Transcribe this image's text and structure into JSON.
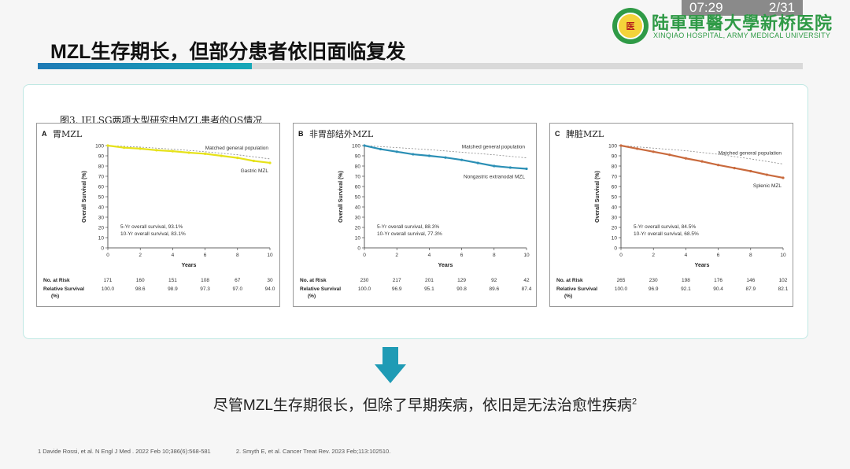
{
  "status": {
    "time": "07:29",
    "page": "2/31"
  },
  "logo": {
    "text": "医"
  },
  "hospital": {
    "cn": "陆軍軍醫大學新桥医院",
    "en": "XINQIAO HOSPITAL, ARMY MEDICAL UNIVERSITY"
  },
  "title": "MZL生存期长，但部分患者依旧面临复发",
  "figure_caption": "图3. IELSG两项大型研究中MZL患者的OS情况",
  "conclusion": {
    "text": "尽管MZL生存期很长，但除了早期疾病，依旧是无法治愈性疾病",
    "sup": "2"
  },
  "references": [
    "1 Davide Rossi, et al. N Engl J Med . 2022 Feb 10;386(6):568-581",
    "2. Smyth E, et al. Cancer Treat Rev. 2023 Feb;113:102510."
  ],
  "colors": {
    "accent": "#1e7ab5",
    "gastric": "#e6e21a",
    "nongastric": "#2a8fb5",
    "splenic": "#c96a3d",
    "arrow": "#1f9bb5"
  },
  "chart_data": [
    {
      "type": "line",
      "panel": "A",
      "title": "胃MZL",
      "xlabel": "Years",
      "ylabel": "Overall Survival (%)",
      "xlim": [
        0,
        10
      ],
      "ylim": [
        0,
        100
      ],
      "xticks": [
        0,
        2,
        4,
        6,
        8,
        10
      ],
      "yticks": [
        0,
        10,
        20,
        30,
        40,
        50,
        60,
        70,
        80,
        90,
        100
      ],
      "series": [
        {
          "name": "Matched general population",
          "x": [
            0,
            2,
            4,
            6,
            8,
            10
          ],
          "y": [
            100,
            98.5,
            96.5,
            94,
            91,
            87
          ]
        },
        {
          "name": "Gastric MZL",
          "x": [
            0,
            1,
            2,
            3,
            4,
            5,
            6,
            7,
            8,
            9,
            10
          ],
          "y": [
            100,
            98,
            97,
            95.5,
            94.5,
            93.1,
            92,
            90,
            88,
            85,
            83.1
          ]
        }
      ],
      "annotations": [
        "5-Yr overall survival, 93.1%",
        "10-Yr overall survival, 83.1%"
      ],
      "risk_table": {
        "row_labels": [
          "No. at Risk",
          "Relative Survival",
          "(%)"
        ],
        "no_at_risk": [
          "171",
          "160",
          "151",
          "108",
          "67",
          "30"
        ],
        "relative_survival": [
          "100.0",
          "98.6",
          "98.9",
          "97.3",
          "97.0",
          "94.0"
        ]
      }
    },
    {
      "type": "line",
      "panel": "B",
      "title": "非胃部结外MZL",
      "xlabel": "Years",
      "ylabel": "Overall Survival (%)",
      "xlim": [
        0,
        10
      ],
      "ylim": [
        0,
        100
      ],
      "xticks": [
        0,
        2,
        4,
        6,
        8,
        10
      ],
      "yticks": [
        0,
        10,
        20,
        30,
        40,
        50,
        60,
        70,
        80,
        90,
        100
      ],
      "series": [
        {
          "name": "Matched general population",
          "x": [
            0,
            2,
            4,
            6,
            8,
            10
          ],
          "y": [
            100,
            98,
            96,
            93.5,
            91,
            88
          ]
        },
        {
          "name": "Nongastric extranodal MZL",
          "x": [
            0,
            1,
            2,
            3,
            4,
            5,
            6,
            7,
            8,
            9,
            10
          ],
          "y": [
            100,
            96.5,
            94,
            91.5,
            90,
            88.3,
            86,
            83,
            80,
            78.5,
            77.3
          ]
        }
      ],
      "annotations": [
        "5-Yr overall survival, 88.3%",
        "10-Yr overall survival, 77.3%"
      ],
      "risk_table": {
        "row_labels": [
          "No. at Risk",
          "Relative Survival",
          "(%)"
        ],
        "no_at_risk": [
          "230",
          "217",
          "201",
          "129",
          "92",
          "42"
        ],
        "relative_survival": [
          "100.0",
          "96.9",
          "95.1",
          "90.8",
          "89.6",
          "87.4"
        ]
      }
    },
    {
      "type": "line",
      "panel": "C",
      "title": "脾脏MZL",
      "xlabel": "Years",
      "ylabel": "Overall Survival (%)",
      "xlim": [
        0,
        10
      ],
      "ylim": [
        0,
        100
      ],
      "xticks": [
        0,
        2,
        4,
        6,
        8,
        10
      ],
      "yticks": [
        0,
        10,
        20,
        30,
        40,
        50,
        60,
        70,
        80,
        90,
        100
      ],
      "series": [
        {
          "name": "Matched general population",
          "x": [
            0,
            2,
            4,
            6,
            8,
            10
          ],
          "y": [
            100,
            97.5,
            95,
            91.5,
            87,
            82
          ]
        },
        {
          "name": "Splenic MZL",
          "x": [
            0,
            1,
            2,
            3,
            4,
            5,
            6,
            7,
            8,
            9,
            10
          ],
          "y": [
            100,
            97,
            94,
            91,
            87.5,
            84.5,
            81,
            78,
            75,
            71.5,
            68.5
          ]
        }
      ],
      "annotations": [
        "5-Yr overall survival, 84.5%",
        "10-Yr overall survival, 68.5%"
      ],
      "risk_table": {
        "row_labels": [
          "No. at Risk",
          "Relative Survival",
          "(%)"
        ],
        "no_at_risk": [
          "265",
          "230",
          "198",
          "176",
          "146",
          "102"
        ],
        "relative_survival": [
          "100.0",
          "96.9",
          "92.1",
          "90.4",
          "87.9",
          "82.1"
        ]
      }
    }
  ]
}
